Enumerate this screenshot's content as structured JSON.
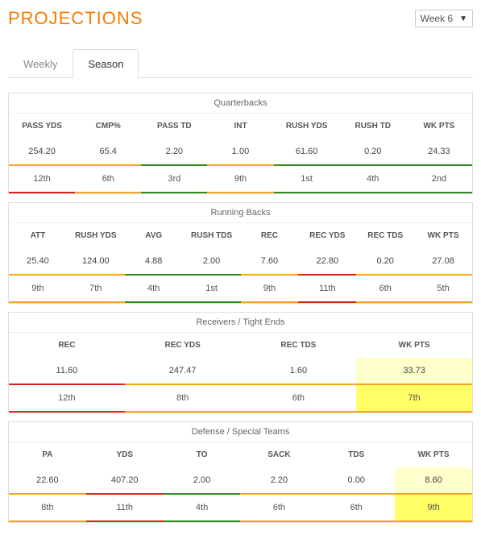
{
  "title": "PROJECTIONS",
  "week_selector": {
    "label": "Week 6"
  },
  "tabs": {
    "weekly": "Weekly",
    "season": "Season",
    "active": "season"
  },
  "colors": {
    "red": "#d7261e",
    "orange": "#f5a623",
    "green": "#2e8b1f"
  },
  "sections": [
    {
      "title": "Quarterbacks",
      "columns": [
        "PASS YDS",
        "CMP%",
        "PASS TD",
        "INT",
        "RUSH YDS",
        "RUSH TD",
        "WK PTS"
      ],
      "values": [
        "254.20",
        "65.4",
        "2.20",
        "1.00",
        "61.60",
        "0.20",
        "24.33"
      ],
      "bar1": [
        "orange",
        "orange",
        "green",
        "orange",
        "green",
        "green",
        "green"
      ],
      "ranks": [
        "12th",
        "6th",
        "3rd",
        "9th",
        "1st",
        "4th",
        "2nd"
      ],
      "bar2": [
        "red",
        "orange",
        "green",
        "orange",
        "green",
        "green",
        "green"
      ],
      "hl_val": [],
      "hl_rank": []
    },
    {
      "title": "Running Backs",
      "columns": [
        "ATT",
        "RUSH YDS",
        "AVG",
        "RUSH TDS",
        "REC",
        "REC YDS",
        "REC TDS",
        "WK PTS"
      ],
      "values": [
        "25.40",
        "124.00",
        "4.88",
        "2.00",
        "7.60",
        "22.80",
        "0.20",
        "27.08"
      ],
      "bar1": [
        "orange",
        "orange",
        "green",
        "green",
        "orange",
        "red",
        "orange",
        "orange"
      ],
      "ranks": [
        "9th",
        "7th",
        "4th",
        "1st",
        "9th",
        "11th",
        "6th",
        "5th"
      ],
      "bar2": [
        "orange",
        "orange",
        "green",
        "green",
        "orange",
        "red",
        "orange",
        "orange"
      ],
      "hl_val": [],
      "hl_rank": []
    },
    {
      "title": "Receivers / Tight Ends",
      "columns": [
        "REC",
        "REC YDS",
        "REC TDS",
        "WK PTS"
      ],
      "values": [
        "11.60",
        "247.47",
        "1.60",
        "33.73"
      ],
      "bar1": [
        "red",
        "orange",
        "orange",
        "orange"
      ],
      "ranks": [
        "12th",
        "8th",
        "6th",
        "7th"
      ],
      "bar2": [
        "red",
        "orange",
        "orange",
        "orange"
      ],
      "hl_val": [
        3
      ],
      "hl_rank": [
        3
      ]
    },
    {
      "title": "Defense / Special Teams",
      "columns": [
        "PA",
        "YDS",
        "TO",
        "SACK",
        "TDS",
        "WK PTS"
      ],
      "values": [
        "22.60",
        "407.20",
        "2.00",
        "2.20",
        "0.00",
        "8.60"
      ],
      "bar1": [
        "orange",
        "red",
        "green",
        "orange",
        "orange",
        "orange"
      ],
      "ranks": [
        "8th",
        "11th",
        "4th",
        "6th",
        "6th",
        "9th"
      ],
      "bar2": [
        "orange",
        "red",
        "green",
        "orange",
        "orange",
        "orange"
      ],
      "hl_val": [
        5
      ],
      "hl_rank": [
        5
      ]
    }
  ]
}
